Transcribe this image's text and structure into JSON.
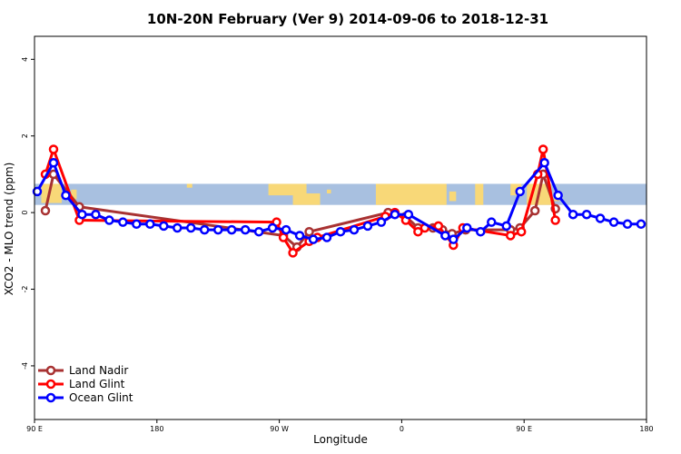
{
  "chart_data": {
    "type": "line",
    "title": "10N-20N February (Ver 9)   2014-09-06 to 2018-12-31",
    "xlabel": "Longitude",
    "ylabel": "XCO2 - MLO trend (ppm)",
    "xlim": [
      90,
      540
    ],
    "ylim": [
      -5.4,
      4.6
    ],
    "x_ticks": [
      {
        "value": 90,
        "label": "90 E"
      },
      {
        "value": 180,
        "label": "180"
      },
      {
        "value": 270,
        "label": "90 W"
      },
      {
        "value": 360,
        "label": "0"
      },
      {
        "value": 450,
        "label": "90 E"
      },
      {
        "value": 540,
        "label": "180"
      }
    ],
    "y_ticks": [
      {
        "value": -4,
        "label": "-4"
      },
      {
        "value": -2,
        "label": "-2"
      },
      {
        "value": 0,
        "label": "0"
      },
      {
        "value": 2,
        "label": "2"
      },
      {
        "value": 4,
        "label": "4"
      }
    ],
    "map_band": {
      "y_bottom": 0.2,
      "y_top": 0.75,
      "ocean_color": "#a8c0e0",
      "land_color": "#f8d878"
    },
    "legend_position": "bottom-left",
    "series": [
      {
        "name": "Land Nadir",
        "color": "#a83232",
        "points": [
          [
            98,
            0.05
          ],
          [
            104,
            1.0
          ],
          [
            123,
            0.15
          ],
          [
            273,
            -0.6
          ],
          [
            283,
            -0.9
          ],
          [
            292,
            -0.5
          ],
          [
            350,
            0.0
          ],
          [
            363,
            -0.1
          ],
          [
            372,
            -0.4
          ],
          [
            383,
            -0.4
          ],
          [
            390,
            -0.45
          ],
          [
            397,
            -0.55
          ],
          [
            407,
            -0.45
          ],
          [
            440,
            -0.45
          ],
          [
            447,
            -0.4
          ],
          [
            458,
            0.05
          ],
          [
            464,
            1.0
          ],
          [
            473,
            0.1
          ]
        ]
      },
      {
        "name": "Land Glint",
        "color": "#ff0000",
        "points": [
          [
            98,
            1.0
          ],
          [
            104,
            1.65
          ],
          [
            123,
            -0.2
          ],
          [
            268,
            -0.25
          ],
          [
            273,
            -0.65
          ],
          [
            280,
            -1.05
          ],
          [
            292,
            -0.75
          ],
          [
            298,
            -0.65
          ],
          [
            348,
            -0.1
          ],
          [
            355,
            0.0
          ],
          [
            363,
            -0.2
          ],
          [
            372,
            -0.5
          ],
          [
            377,
            -0.4
          ],
          [
            387,
            -0.35
          ],
          [
            398,
            -0.85
          ],
          [
            405,
            -0.4
          ],
          [
            440,
            -0.6
          ],
          [
            448,
            -0.5
          ],
          [
            460,
            1.0
          ],
          [
            464,
            1.65
          ],
          [
            473,
            -0.2
          ]
        ]
      },
      {
        "name": "Ocean Glint",
        "color": "#0000ff",
        "points": [
          [
            92,
            0.55
          ],
          [
            104,
            1.3
          ],
          [
            113,
            0.45
          ],
          [
            125,
            -0.05
          ],
          [
            135,
            -0.05
          ],
          [
            145,
            -0.2
          ],
          [
            155,
            -0.25
          ],
          [
            165,
            -0.3
          ],
          [
            175,
            -0.3
          ],
          [
            185,
            -0.35
          ],
          [
            195,
            -0.4
          ],
          [
            205,
            -0.4
          ],
          [
            215,
            -0.45
          ],
          [
            225,
            -0.45
          ],
          [
            235,
            -0.45
          ],
          [
            245,
            -0.45
          ],
          [
            255,
            -0.5
          ],
          [
            265,
            -0.4
          ],
          [
            275,
            -0.45
          ],
          [
            285,
            -0.6
          ],
          [
            295,
            -0.7
          ],
          [
            305,
            -0.65
          ],
          [
            315,
            -0.5
          ],
          [
            325,
            -0.45
          ],
          [
            335,
            -0.35
          ],
          [
            345,
            -0.25
          ],
          [
            355,
            -0.05
          ],
          [
            365,
            -0.05
          ],
          [
            392,
            -0.6
          ],
          [
            398,
            -0.7
          ],
          [
            408,
            -0.4
          ],
          [
            418,
            -0.5
          ],
          [
            426,
            -0.25
          ],
          [
            437,
            -0.35
          ],
          [
            447,
            0.55
          ],
          [
            465,
            1.3
          ],
          [
            475,
            0.45
          ],
          [
            486,
            -0.05
          ],
          [
            496,
            -0.05
          ],
          [
            506,
            -0.15
          ],
          [
            516,
            -0.25
          ],
          [
            526,
            -0.3
          ],
          [
            536,
            -0.3
          ]
        ]
      }
    ]
  }
}
